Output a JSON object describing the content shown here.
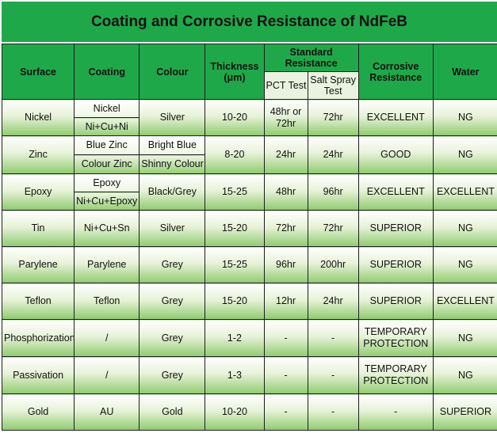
{
  "title": "Coating and Corrosive Resistance of NdFeB",
  "headers": {
    "surface": "Surface",
    "coating": "Coating",
    "colour": "Colour",
    "thickness": "Thickness (μm)",
    "standard_resistance": "Standard Resistance",
    "pct_test": "PCT Test",
    "salt_spray_test": "Salt Spray Test",
    "corrosive_resistance": "Corrosive Resistance",
    "water": "Water"
  },
  "rows": [
    {
      "surface": "Nickel",
      "coatings": [
        "Nickel",
        "Ni+Cu+Ni"
      ],
      "colour": "Silver",
      "thickness": "10-20",
      "pct": "48hr or 72hr",
      "salt": "72hr",
      "corrosive": "EXCELLENT",
      "water": "NG"
    },
    {
      "surface": "Zinc",
      "coatings": [
        "Blue Zinc",
        "Colour Zinc"
      ],
      "colours": [
        "Bright Blue",
        "Shinny Colour"
      ],
      "thickness": "8-20",
      "pct": "24hr",
      "salt": "24hr",
      "corrosive": "GOOD",
      "water": "NG"
    },
    {
      "surface": "Epoxy",
      "coatings": [
        "Epoxy",
        "Ni+Cu+Epoxy"
      ],
      "colour": "Black/Grey",
      "thickness": "15-25",
      "pct": "48hr",
      "salt": "96hr",
      "corrosive": "EXCELLENT",
      "water": "EXCELLENT"
    },
    {
      "surface": "Tin",
      "coating": "Ni+Cu+Sn",
      "colour": "Silver",
      "thickness": "15-20",
      "pct": "72hr",
      "salt": "72hr",
      "corrosive": "SUPERIOR",
      "water": "NG"
    },
    {
      "surface": "Parylene",
      "coating": "Parylene",
      "colour": "Grey",
      "thickness": "15-25",
      "pct": "96hr",
      "salt": "200hr",
      "corrosive": "SUPERIOR",
      "water": "NG"
    },
    {
      "surface": "Teflon",
      "coating": "Teflon",
      "colour": "Grey",
      "thickness": "15-20",
      "pct": "12hr",
      "salt": "24hr",
      "corrosive": "SUPERIOR",
      "water": "EXCELLENT"
    },
    {
      "surface": "Phosphorization",
      "coating": "/",
      "colour": "Grey",
      "thickness": "1-2",
      "pct": "-",
      "salt": "-",
      "corrosive": "TEMPORARY PROTECTION",
      "water": "NG"
    },
    {
      "surface": "Passivation",
      "coating": "/",
      "colour": "Grey",
      "thickness": "1-3",
      "pct": "-",
      "salt": "-",
      "corrosive": "TEMPORARY PROTECTION",
      "water": "NG"
    },
    {
      "surface": "Gold",
      "coating": "AU",
      "colour": "Gold",
      "thickness": "10-20",
      "pct": "-",
      "salt": "-",
      "corrosive": "-",
      "water": "SUPERIOR"
    }
  ]
}
